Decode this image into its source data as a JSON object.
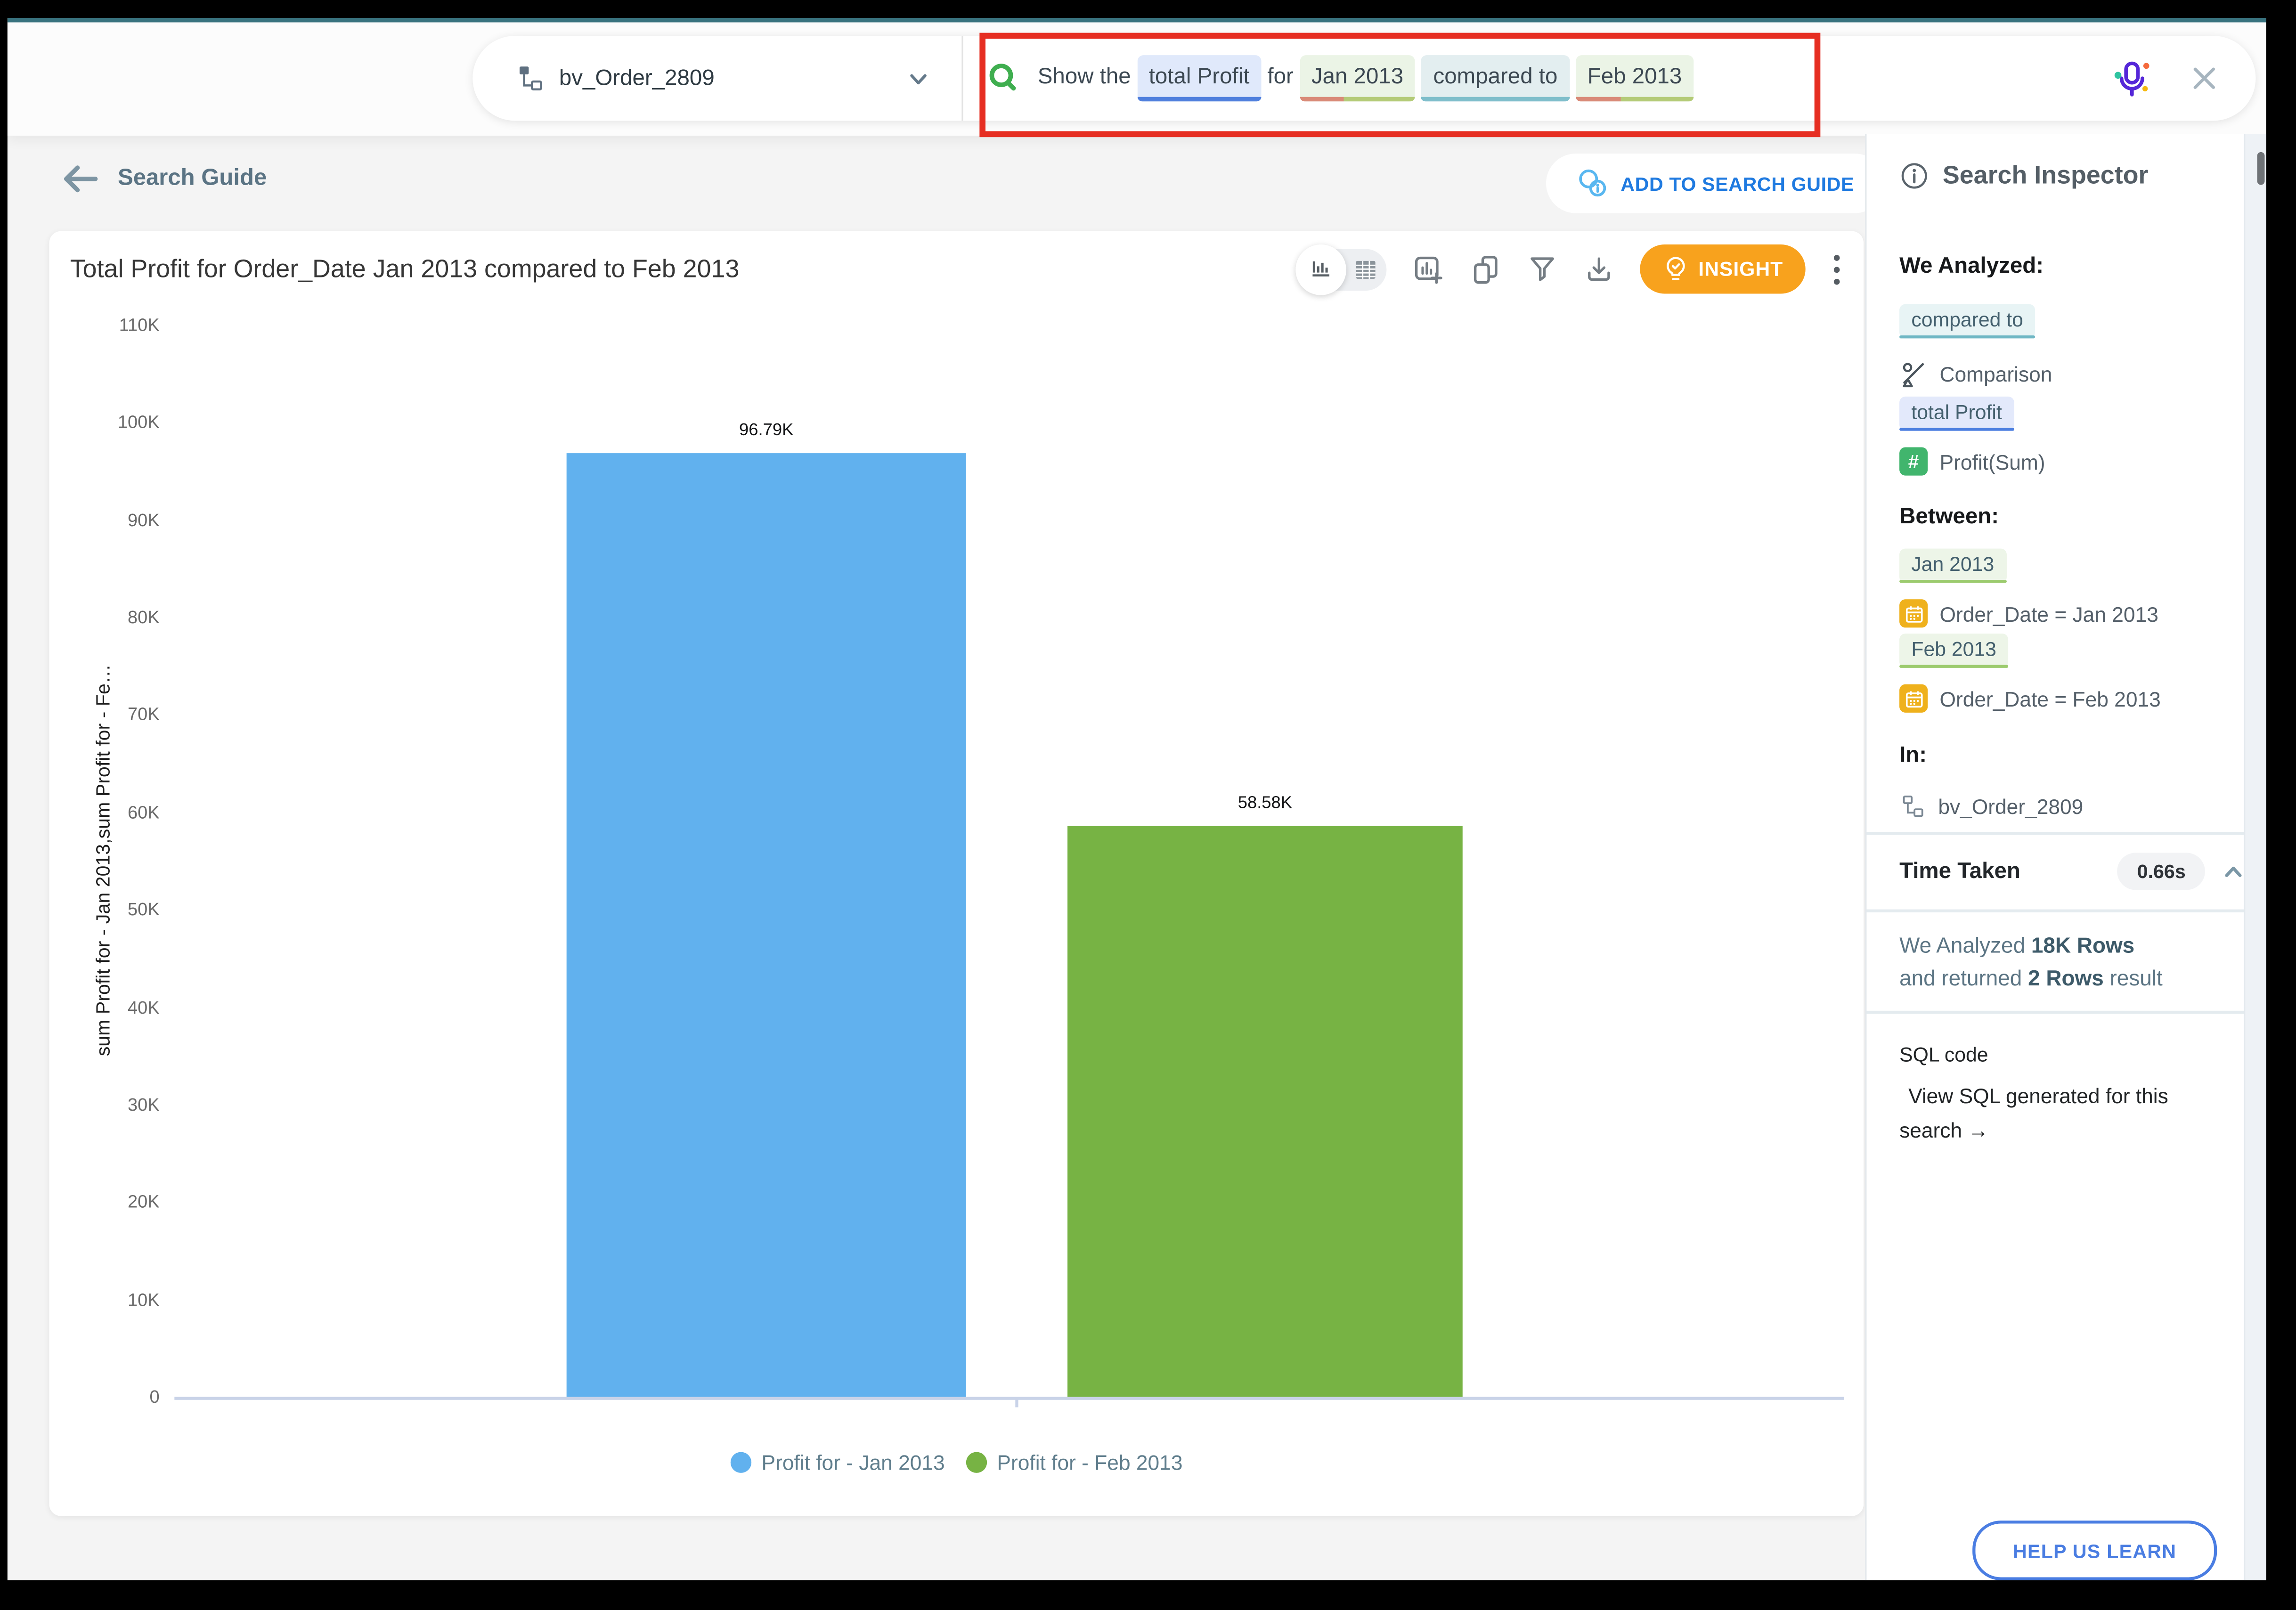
{
  "colors": {
    "accent_teal": "#3a7480",
    "annotation_red": "#e62e22",
    "insight_orange": "#f8a21d",
    "bar_blue": "#61b1ee",
    "bar_green": "#77b344"
  },
  "topbar": {
    "dataset": {
      "label": "bv_Order_2809"
    },
    "search": {
      "tokens": {
        "t0": "Show the",
        "t1": "total Profit",
        "t2": "for",
        "t3": "Jan 2013",
        "t4": "compared to",
        "t5": "Feb 2013"
      }
    }
  },
  "nav": {
    "back_label": "Search Guide",
    "add_to_guide_label": "ADD TO SEARCH GUIDE"
  },
  "card": {
    "title": "Total Profit for Order_Date Jan 2013 compared to Feb 2013",
    "insight_label": "INSIGHT"
  },
  "chart_data": {
    "type": "bar",
    "title": "Total Profit for Order_Date Jan 2013 compared to Feb 2013",
    "categories": [
      "Profit for - Jan 2013",
      "Profit for - Feb 2013"
    ],
    "values": [
      96790,
      58580
    ],
    "value_labels": [
      "96.79K",
      "58.58K"
    ],
    "colors": [
      "#61b1ee",
      "#77b344"
    ],
    "ylabel": "sum Profit for - Jan 2013,sum Profit for - Fe…",
    "xlabel": "",
    "ylim": [
      0,
      110000
    ],
    "ytick_labels": [
      "110K",
      "100K",
      "90K",
      "80K",
      "70K",
      "60K",
      "50K",
      "40K",
      "30K",
      "20K",
      "10K",
      "0"
    ],
    "grid": false,
    "legend_position": "bottom"
  },
  "legend": {
    "items": [
      {
        "label": "Profit for - Jan 2013",
        "color": "#61b1ee"
      },
      {
        "label": "Profit for - Feb 2013",
        "color": "#77b344"
      }
    ]
  },
  "inspector": {
    "title": "Search Inspector",
    "we_analyzed_heading": "We Analyzed:",
    "chip_compared_to": "compared to",
    "comparison_label": "Comparison",
    "chip_total_profit": "total Profit",
    "hash_glyph": "#",
    "profit_sum_label": "Profit(Sum)",
    "between_heading": "Between:",
    "chip_jan": "Jan 2013",
    "jan_filter": "Order_Date = Jan 2013",
    "chip_feb": "Feb 2013",
    "feb_filter": "Order_Date = Feb 2013",
    "in_heading": "In:",
    "dataset_label": "bv_Order_2809",
    "time_taken_label": "Time Taken",
    "time_taken_value": "0.66s",
    "rows_line1_prefix": "We Analyzed ",
    "rows_line1_bold": "18K Rows",
    "rows_line2_prefix": "and returned ",
    "rows_line2_bold": "2 Rows",
    "rows_line2_suffix": " result",
    "sql_heading": "SQL code",
    "sql_link": "View SQL generated for this search",
    "sql_arrow": "→",
    "help_button_label": "HELP US LEARN"
  }
}
